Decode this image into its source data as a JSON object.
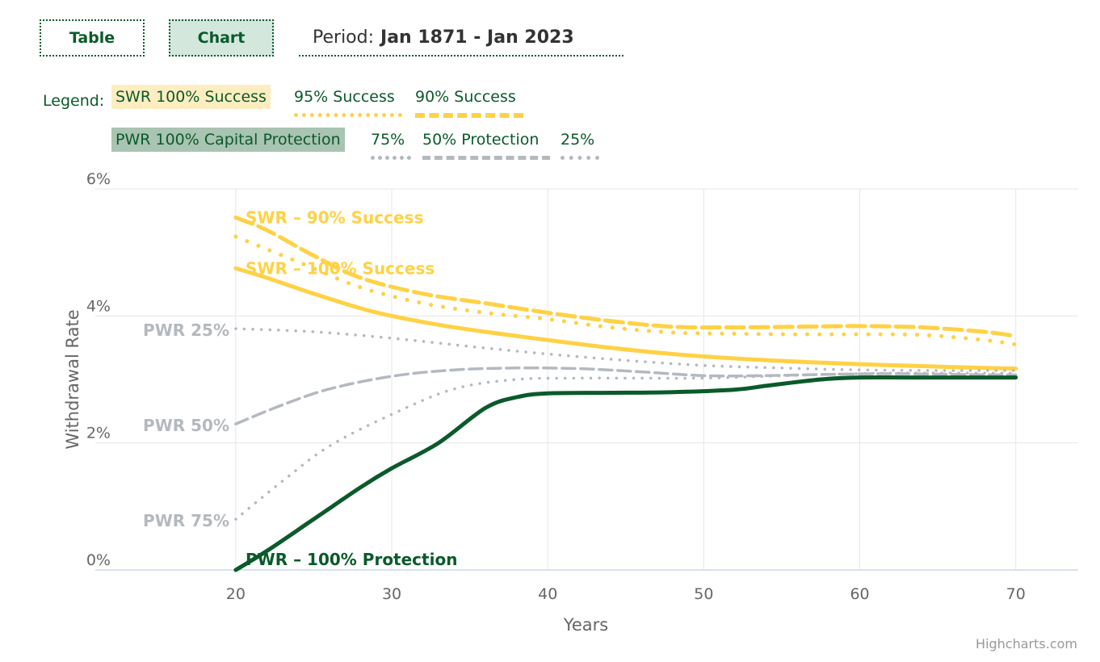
{
  "controls": {
    "table_label": "Table",
    "chart_label": "Chart",
    "period_label": "Period:",
    "period_value": "Jan 1871 - Jan 2023"
  },
  "legend": {
    "label": "Legend:",
    "swr100": "SWR 100% Success",
    "swr95": "95% Success",
    "swr90": "90% Success",
    "pwr100": "PWR 100% Capital Protection",
    "pwr75": "75%",
    "pwr50": "50% Protection",
    "pwr25": "25%"
  },
  "colors": {
    "swr": "#ffd145",
    "pwr100": "#0a5a2a",
    "pwr_other": "#b4b9bf",
    "grid": "#e6e6e6"
  },
  "credits": "Highcharts.com",
  "chart_data": {
    "type": "line",
    "xlabel": "Years",
    "ylabel": "Withdrawal Rate",
    "xlim": [
      11,
      74
    ],
    "ylim": [
      0,
      6
    ],
    "xticks": [
      20,
      30,
      40,
      50,
      60,
      70
    ],
    "yticks": [
      0,
      2,
      4,
      6
    ],
    "ytick_labels": [
      "0%",
      "2%",
      "4%",
      "6%"
    ],
    "series": [
      {
        "key": "swr90",
        "style": "dashed",
        "color": "#ffd145",
        "width": 5,
        "label": "SWR – 90% Success",
        "x": [
          20,
          22,
          25,
          28,
          32,
          36,
          40,
          44,
          48,
          52,
          56,
          60,
          64,
          68,
          70
        ],
        "y": [
          5.55,
          5.35,
          4.95,
          4.6,
          4.35,
          4.2,
          4.05,
          3.92,
          3.83,
          3.82,
          3.83,
          3.84,
          3.82,
          3.75,
          3.68
        ]
      },
      {
        "key": "swr95",
        "style": "dotted",
        "color": "#ffd145",
        "width": 5,
        "label": "",
        "x": [
          20,
          22,
          25,
          28,
          32,
          36,
          40,
          44,
          48,
          52,
          56,
          60,
          64,
          68,
          70
        ],
        "y": [
          5.25,
          5.05,
          4.75,
          4.45,
          4.2,
          4.05,
          3.95,
          3.82,
          3.74,
          3.72,
          3.71,
          3.71,
          3.7,
          3.62,
          3.55
        ]
      },
      {
        "key": "swr100",
        "style": "solid",
        "color": "#ffd145",
        "width": 5,
        "label": "SWR – 100% Success",
        "x": [
          20,
          22,
          25,
          28,
          30,
          33,
          36,
          40,
          44,
          48,
          52,
          56,
          60,
          64,
          68,
          70
        ],
        "y": [
          4.75,
          4.6,
          4.35,
          4.12,
          4.0,
          3.86,
          3.75,
          3.62,
          3.5,
          3.4,
          3.33,
          3.28,
          3.24,
          3.21,
          3.18,
          3.17
        ]
      },
      {
        "key": "pwr25",
        "style": "dotted",
        "color": "#b4b9bf",
        "width": 3.5,
        "label": "PWR 25%",
        "x": [
          20,
          25,
          30,
          35,
          40,
          45,
          50,
          55,
          60,
          65,
          70
        ],
        "y": [
          3.8,
          3.75,
          3.65,
          3.52,
          3.4,
          3.3,
          3.22,
          3.18,
          3.15,
          3.14,
          3.14
        ]
      },
      {
        "key": "pwr50",
        "style": "dashed",
        "color": "#b4b9bf",
        "width": 3.5,
        "label": "PWR 50%",
        "x": [
          20,
          23,
          26,
          30,
          34,
          38,
          42,
          46,
          50,
          54,
          58,
          62,
          66,
          70
        ],
        "y": [
          2.3,
          2.6,
          2.85,
          3.05,
          3.15,
          3.18,
          3.17,
          3.12,
          3.06,
          3.06,
          3.08,
          3.09,
          3.08,
          3.07
        ]
      },
      {
        "key": "pwr75",
        "style": "dotted",
        "color": "#b4b9bf",
        "width": 3.5,
        "label": "PWR 75%",
        "x": [
          20,
          23,
          26,
          30,
          34,
          38,
          42,
          46,
          50,
          54,
          58,
          62,
          66,
          70
        ],
        "y": [
          0.8,
          1.4,
          1.95,
          2.45,
          2.85,
          3.0,
          3.02,
          3.02,
          3.02,
          3.05,
          3.08,
          3.1,
          3.1,
          3.1
        ]
      },
      {
        "key": "pwr100",
        "style": "solid",
        "color": "#0a5a2a",
        "width": 5,
        "label": "PWR – 100% Protection",
        "x": [
          20,
          22,
          25,
          28,
          30,
          33,
          36,
          38,
          40,
          44,
          48,
          52,
          54,
          56,
          58,
          60,
          63,
          66,
          70
        ],
        "y": [
          0.0,
          0.3,
          0.8,
          1.3,
          1.6,
          2.0,
          2.55,
          2.72,
          2.78,
          2.79,
          2.8,
          2.84,
          2.9,
          2.96,
          3.01,
          3.03,
          3.03,
          3.03,
          3.03
        ]
      }
    ]
  }
}
